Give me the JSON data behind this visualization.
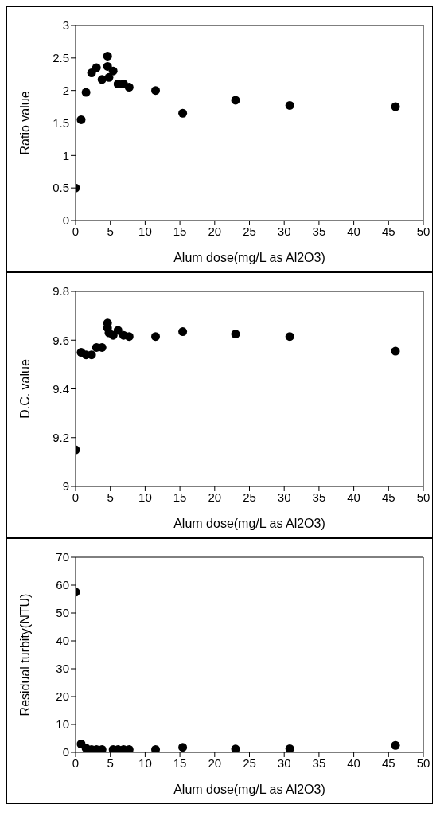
{
  "chart_data": [
    {
      "type": "scatter",
      "xlabel": "Alum dose(mg/L as Al2O3)",
      "ylabel": "Ratio value",
      "x": [
        0,
        0.8,
        1.5,
        2.3,
        3,
        3.8,
        4.6,
        4.6,
        4.8,
        5.4,
        6.1,
        6.9,
        7.7,
        11.5,
        15.4,
        23,
        30.8,
        46
      ],
      "values": [
        0.5,
        1.55,
        1.97,
        2.27,
        2.35,
        2.17,
        2.53,
        2.37,
        2.2,
        2.3,
        2.1,
        2.1,
        2.05,
        2.0,
        1.65,
        1.85,
        1.77,
        1.75
      ],
      "color": "#000000",
      "marker": "circle",
      "xlim": [
        0,
        50
      ],
      "xticks": [
        0,
        5,
        10,
        15,
        20,
        25,
        30,
        35,
        40,
        45,
        50
      ],
      "ylim": [
        0,
        3
      ],
      "yticks": [
        0,
        0.5,
        1,
        1.5,
        2,
        2.5,
        3
      ],
      "grid": false,
      "legend": false
    },
    {
      "type": "scatter",
      "xlabel": "Alum dose(mg/L as Al2O3)",
      "ylabel": "D.C. value",
      "x": [
        0,
        0.8,
        1.5,
        2.3,
        3,
        3.8,
        4.6,
        4.6,
        4.8,
        5.4,
        6.1,
        6.9,
        7.7,
        11.5,
        15.4,
        23,
        30.8,
        46
      ],
      "values": [
        9.15,
        9.55,
        9.54,
        9.54,
        9.57,
        9.57,
        9.65,
        9.67,
        9.63,
        9.62,
        9.64,
        9.62,
        9.615,
        9.615,
        9.635,
        9.625,
        9.615,
        9.555
      ],
      "color": "#000000",
      "marker": "circle",
      "xlim": [
        0,
        50
      ],
      "xticks": [
        0,
        5,
        10,
        15,
        20,
        25,
        30,
        35,
        40,
        45,
        50
      ],
      "ylim": [
        9,
        9.8
      ],
      "yticks": [
        9,
        9.2,
        9.4,
        9.6,
        9.8
      ],
      "grid": false,
      "legend": false
    },
    {
      "type": "scatter",
      "xlabel": "Alum dose(mg/L as Al2O3)",
      "ylabel": "Residual turbity(NTU)",
      "x": [
        0,
        0.8,
        1.5,
        2.3,
        3,
        3.8,
        5.4,
        6.1,
        6.9,
        7.7,
        11.5,
        15.4,
        23,
        30.8,
        46
      ],
      "values": [
        57.5,
        3,
        1.5,
        1,
        1,
        1,
        1,
        1,
        1,
        1,
        1,
        1.8,
        1.2,
        1.3,
        2.5
      ],
      "color": "#000000",
      "marker": "circle",
      "xlim": [
        0,
        50
      ],
      "xticks": [
        0,
        5,
        10,
        15,
        20,
        25,
        30,
        35,
        40,
        45,
        50
      ],
      "ylim": [
        0,
        70
      ],
      "yticks": [
        0,
        10,
        20,
        30,
        40,
        50,
        60,
        70
      ],
      "grid": false,
      "legend": false
    }
  ]
}
